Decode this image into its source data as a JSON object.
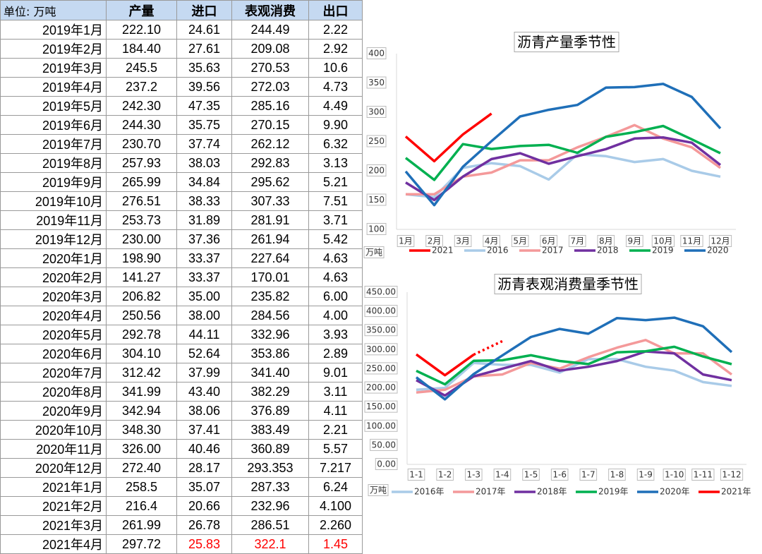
{
  "table": {
    "header": [
      "单位: 万吨",
      "产量",
      "进口",
      "表观消费",
      "出口"
    ],
    "rows": [
      [
        "2019年1月",
        "222.10",
        "24.61",
        "244.49",
        "2.22"
      ],
      [
        "2019年2月",
        "184.40",
        "27.61",
        "209.08",
        "2.92"
      ],
      [
        "2019年3月",
        "245.5",
        "35.63",
        "270.53",
        "10.6"
      ],
      [
        "2019年4月",
        "237.2",
        "39.56",
        "272.03",
        "4.73"
      ],
      [
        "2019年5月",
        "242.30",
        "47.35",
        "285.16",
        "4.49"
      ],
      [
        "2019年6月",
        "244.30",
        "35.75",
        "270.15",
        "9.90"
      ],
      [
        "2019年7月",
        "230.70",
        "37.74",
        "262.12",
        "6.32"
      ],
      [
        "2019年8月",
        "257.93",
        "38.03",
        "292.83",
        "3.13"
      ],
      [
        "2019年9月",
        "265.99",
        "34.84",
        "295.62",
        "5.21"
      ],
      [
        "2019年10月",
        "276.51",
        "38.33",
        "307.33",
        "7.51"
      ],
      [
        "2019年11月",
        "253.73",
        "31.89",
        "281.91",
        "3.71"
      ],
      [
        "2019年12月",
        "230.00",
        "37.36",
        "261.94",
        "5.42"
      ],
      [
        "2020年1月",
        "198.90",
        "33.37",
        "227.64",
        "4.63"
      ],
      [
        "2020年2月",
        "141.27",
        "33.37",
        "170.01",
        "4.63"
      ],
      [
        "2020年3月",
        "206.82",
        "35.00",
        "235.82",
        "6.00"
      ],
      [
        "2020年4月",
        "250.56",
        "38.00",
        "284.56",
        "4.00"
      ],
      [
        "2020年5月",
        "292.78",
        "44.11",
        "332.96",
        "3.93"
      ],
      [
        "2020年6月",
        "304.10",
        "52.64",
        "353.86",
        "2.89"
      ],
      [
        "2020年7月",
        "312.42",
        "37.99",
        "341.40",
        "9.01"
      ],
      [
        "2020年8月",
        "341.99",
        "43.40",
        "382.29",
        "3.11"
      ],
      [
        "2020年9月",
        "342.94",
        "38.06",
        "376.89",
        "4.11"
      ],
      [
        "2020年10月",
        "348.30",
        "37.41",
        "383.49",
        "2.21"
      ],
      [
        "2020年11月",
        "326.00",
        "40.46",
        "360.89",
        "5.57"
      ],
      [
        "2020年12月",
        "272.40",
        "28.17",
        "293.353",
        "7.217"
      ],
      [
        "2021年1月",
        "258.5",
        "35.07",
        "287.33",
        "6.24"
      ],
      [
        "2021年2月",
        "216.4",
        "20.66",
        "232.96",
        "4.100"
      ],
      [
        "2021年3月",
        "261.99",
        "26.78",
        "286.51",
        "2.260"
      ],
      [
        "2021年4月",
        "297.72",
        "25.83",
        "322.1",
        "1.45"
      ]
    ],
    "highlight_color": "#ff0000",
    "highlight_cells": [
      [
        27,
        2
      ],
      [
        27,
        3
      ],
      [
        27,
        4
      ]
    ]
  },
  "chart_data": [
    {
      "type": "line",
      "title": "沥青产量季节性",
      "y_label": "万吨",
      "categories": [
        "1月",
        "2月",
        "3月",
        "4月",
        "5月",
        "6月",
        "7月",
        "8月",
        "9月",
        "10月",
        "11月",
        "12月"
      ],
      "ylim": [
        100,
        400
      ],
      "yticks": [
        100,
        150,
        200,
        250,
        300,
        350,
        400
      ],
      "grid": false,
      "series": [
        {
          "name": "2021",
          "color": "#ff0000",
          "values": [
            258.5,
            216.4,
            261.99,
            297.72,
            null,
            null,
            null,
            null,
            null,
            null,
            null,
            null
          ]
        },
        {
          "name": "2016",
          "color": "#a9cbe8",
          "values": [
            160,
            155,
            205,
            213,
            208,
            185,
            228,
            225,
            215,
            220,
            200,
            190
          ]
        },
        {
          "name": "2017",
          "color": "#f4999a",
          "values": [
            160,
            160,
            190,
            197,
            218,
            218,
            240,
            258,
            278,
            255,
            240,
            205
          ]
        },
        {
          "name": "2018",
          "color": "#7030a0",
          "values": [
            180,
            150,
            190,
            220,
            230,
            212,
            225,
            237,
            255,
            257,
            248,
            210
          ]
        },
        {
          "name": "2019",
          "color": "#00b050",
          "values": [
            222.1,
            184.4,
            245.5,
            237.2,
            242.3,
            244.3,
            230.7,
            257.93,
            265.99,
            276.51,
            253.73,
            230
          ]
        },
        {
          "name": "2020",
          "color": "#1f6fb8",
          "values": [
            198.9,
            141.27,
            206.82,
            250.56,
            292.78,
            304.1,
            312.42,
            341.99,
            342.94,
            348.3,
            326,
            272.4
          ]
        }
      ]
    },
    {
      "type": "line",
      "title": "沥青表观消费量季节性",
      "y_label": "万吨",
      "categories": [
        "1-1",
        "1-2",
        "1-3",
        "1-4",
        "1-5",
        "1-6",
        "1-7",
        "1-8",
        "1-9",
        "1-10",
        "1-11",
        "1-12"
      ],
      "ylim": [
        0,
        450
      ],
      "yticks": [
        {
          "value": 0,
          "label": "0.00"
        },
        {
          "value": 50,
          "label": "50.00"
        },
        {
          "value": 100,
          "label": "100.00"
        },
        {
          "value": 150,
          "label": "150.00"
        },
        {
          "value": 200,
          "label": "200.00"
        },
        {
          "value": 250,
          "label": "250.00"
        },
        {
          "value": 300,
          "label": "300.00"
        },
        {
          "value": 350,
          "label": "350.00"
        },
        {
          "value": 400,
          "label": "400.00"
        },
        {
          "value": 450,
          "label": "450.00"
        }
      ],
      "grid": false,
      "series": [
        {
          "name": "2016年",
          "color": "#a9cbe8",
          "values": [
            195,
            200,
            265,
            260,
            260,
            240,
            275,
            275,
            255,
            245,
            215,
            205
          ]
        },
        {
          "name": "2017年",
          "color": "#f4999a",
          "values": [
            188,
            195,
            230,
            235,
            265,
            250,
            280,
            305,
            325,
            290,
            290,
            235
          ]
        },
        {
          "name": "2018年",
          "color": "#7030a0",
          "values": [
            220,
            180,
            230,
            250,
            270,
            245,
            255,
            270,
            295,
            290,
            235,
            220
          ]
        },
        {
          "name": "2019年",
          "color": "#00b050",
          "values": [
            244.49,
            209.08,
            270.53,
            272.03,
            285.16,
            270.15,
            262.12,
            292.83,
            295.62,
            307.33,
            281.91,
            261.94
          ]
        },
        {
          "name": "2020年",
          "color": "#1f6fb8",
          "values": [
            227.64,
            170.01,
            235.82,
            284.56,
            332.96,
            353.86,
            341.4,
            382.29,
            376.89,
            383.49,
            360.89,
            293.353
          ]
        },
        {
          "name": "2021年",
          "color": "#ff0000",
          "values": [
            287.33,
            232.96,
            286.51,
            322.1,
            null,
            null,
            null,
            null,
            null,
            null,
            null,
            null
          ]
        }
      ]
    }
  ]
}
